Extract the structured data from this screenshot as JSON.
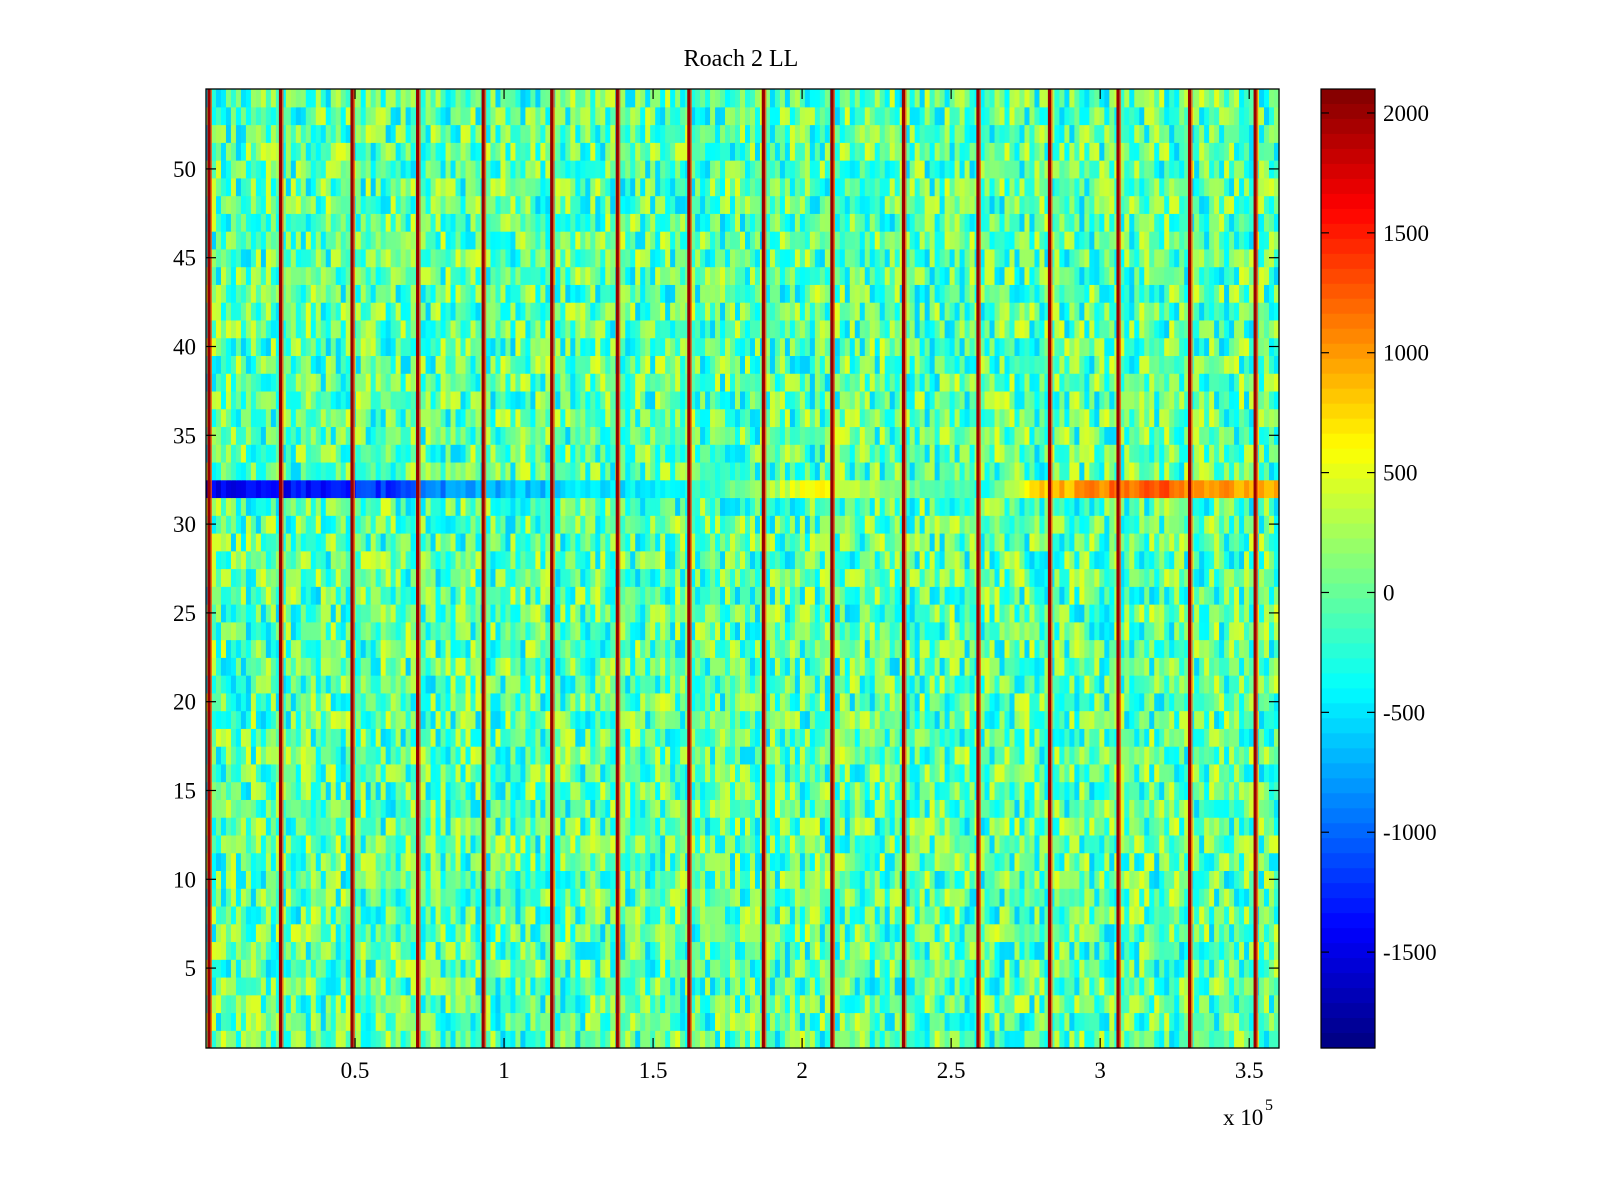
{
  "chart_data": {
    "type": "heatmap",
    "title": "Roach 2 LL",
    "xlabel": "",
    "ylabel": "",
    "x_exponent_label": "x 10",
    "x_exponent": "5",
    "xlim": [
      0,
      360000
    ],
    "ylim": [
      0.5,
      54.5
    ],
    "x_ticks": [
      {
        "value": 50000,
        "label": "0.5"
      },
      {
        "value": 100000,
        "label": "1"
      },
      {
        "value": 150000,
        "label": "1.5"
      },
      {
        "value": 200000,
        "label": "2"
      },
      {
        "value": 250000,
        "label": "2.5"
      },
      {
        "value": 300000,
        "label": "3"
      },
      {
        "value": 350000,
        "label": "3.5"
      }
    ],
    "y_ticks": [
      {
        "value": 5,
        "label": "5"
      },
      {
        "value": 10,
        "label": "10"
      },
      {
        "value": 15,
        "label": "15"
      },
      {
        "value": 20,
        "label": "20"
      },
      {
        "value": 25,
        "label": "25"
      },
      {
        "value": 30,
        "label": "30"
      },
      {
        "value": 35,
        "label": "35"
      },
      {
        "value": 40,
        "label": "40"
      },
      {
        "value": 45,
        "label": "45"
      },
      {
        "value": 50,
        "label": "50"
      }
    ],
    "rows": 54,
    "typical_value_range": [
      -600,
      500
    ],
    "colormap": "jet",
    "colorbar": {
      "limits": [
        -1900,
        2100
      ],
      "ticks": [
        {
          "value": 2000,
          "label": "2000"
        },
        {
          "value": 1500,
          "label": "1500"
        },
        {
          "value": 1000,
          "label": "1000"
        },
        {
          "value": 500,
          "label": "500"
        },
        {
          "value": 0,
          "label": "0"
        },
        {
          "value": -500,
          "label": "-500"
        },
        {
          "value": -1000,
          "label": "-1000"
        },
        {
          "value": -1500,
          "label": "-1500"
        }
      ]
    },
    "high_value_columns_x": [
      1000,
      25000,
      49000,
      71000,
      93000,
      116000,
      138000,
      162000,
      187000,
      210000,
      234000,
      259000,
      283000,
      306000,
      330000,
      352000
    ],
    "high_value_column_value": 2000,
    "row_32_profile": [
      {
        "x": 0,
        "value": -1500
      },
      {
        "x": 25000,
        "value": -1400
      },
      {
        "x": 45000,
        "value": -1300
      },
      {
        "x": 68000,
        "value": -1100
      },
      {
        "x": 90000,
        "value": -700
      },
      {
        "x": 135000,
        "value": -500
      },
      {
        "x": 160000,
        "value": -300
      },
      {
        "x": 185000,
        "value": 100
      },
      {
        "x": 205000,
        "value": 700
      },
      {
        "x": 215000,
        "value": 400
      },
      {
        "x": 250000,
        "value": -100
      },
      {
        "x": 262000,
        "value": -300
      },
      {
        "x": 275000,
        "value": 700
      },
      {
        "x": 300000,
        "value": 1100
      },
      {
        "x": 320000,
        "value": 1250
      },
      {
        "x": 340000,
        "value": 1000
      },
      {
        "x": 360000,
        "value": 900
      }
    ]
  }
}
